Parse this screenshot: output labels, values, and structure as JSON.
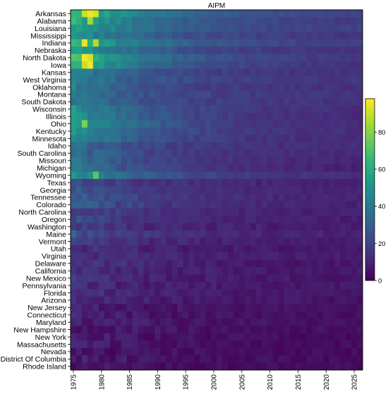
{
  "chart_data": {
    "type": "heatmap",
    "title": "AIPM",
    "xlabel": "",
    "ylabel": "",
    "x_start": 1975,
    "x_end": 2026,
    "x_ticks": [
      1975,
      1980,
      1985,
      1990,
      1995,
      2000,
      2005,
      2010,
      2015,
      2020,
      2025
    ],
    "rows": [
      "Arkansas",
      "Alabama",
      "Louisiana",
      "Mississippi",
      "Indiana",
      "Nebraska",
      "North Dakota",
      "Iowa",
      "Kansas",
      "West Virginia",
      "Oklahoma",
      "Montana",
      "South Dakota",
      "Wisconsin",
      "Illinois",
      "Ohio",
      "Kentucky",
      "Minnesota",
      "Idaho",
      "South Carolina",
      "Missouri",
      "Michigan",
      "Wyoming",
      "Texas",
      "Georgia",
      "Tennessee",
      "Colorado",
      "North Carolina",
      "Oregon",
      "Washington",
      "Maine",
      "Vermont",
      "Utah",
      "Virginia",
      "Delaware",
      "California",
      "New Mexico",
      "Pennsylvania",
      "Florida",
      "Arizona",
      "New Jersey",
      "Connecticut",
      "Maryland",
      "New Hampshire",
      "New York",
      "Massachusetts",
      "Nevada",
      "District Of Columbia",
      "Rhode Island"
    ],
    "row_level_1975": [
      70,
      62,
      58,
      52,
      68,
      55,
      70,
      66,
      45,
      44,
      42,
      38,
      40,
      50,
      52,
      56,
      50,
      48,
      35,
      36,
      38,
      40,
      52,
      24,
      26,
      30,
      30,
      22,
      22,
      18,
      26,
      18,
      14,
      16,
      16,
      14,
      14,
      12,
      14,
      12,
      10,
      8,
      10,
      8,
      8,
      8,
      6,
      8,
      6
    ],
    "row_level_2026": [
      18,
      16,
      17,
      14,
      16,
      12,
      14,
      12,
      12,
      14,
      12,
      14,
      13,
      11,
      10,
      10,
      11,
      10,
      11,
      10,
      9,
      8,
      11,
      8,
      9,
      9,
      8,
      8,
      7,
      7,
      8,
      7,
      6,
      7,
      6,
      6,
      6,
      6,
      6,
      5,
      4,
      4,
      4,
      4,
      3,
      3,
      3,
      3,
      3
    ],
    "hotspots": [
      {
        "row": "Arkansas",
        "x": 1977,
        "value": 90
      },
      {
        "row": "Arkansas",
        "x": 1978,
        "value": 96
      },
      {
        "row": "Arkansas",
        "x": 1979,
        "value": 92
      },
      {
        "row": "Alabama",
        "x": 1978,
        "value": 84
      },
      {
        "row": "Indiana",
        "x": 1977,
        "value": 95
      },
      {
        "row": "Indiana",
        "x": 1979,
        "value": 86
      },
      {
        "row": "North Dakota",
        "x": 1977,
        "value": 97
      },
      {
        "row": "North Dakota",
        "x": 1978,
        "value": 92
      },
      {
        "row": "Iowa",
        "x": 1977,
        "value": 90
      },
      {
        "row": "Iowa",
        "x": 1978,
        "value": 97
      },
      {
        "row": "Ohio",
        "x": 1977,
        "value": 78
      },
      {
        "row": "Wyoming",
        "x": 1979,
        "value": 72
      }
    ],
    "value_range": [
      0,
      98
    ],
    "colorbar_ticks": [
      0,
      20,
      40,
      60,
      80
    ],
    "colormap": [
      "#440154",
      "#482878",
      "#3e4989",
      "#31688e",
      "#26828e",
      "#1f9e89",
      "#35b779",
      "#6ece58",
      "#b5de2b",
      "#fde725"
    ],
    "grid": false,
    "legend": "colorbar-right"
  }
}
